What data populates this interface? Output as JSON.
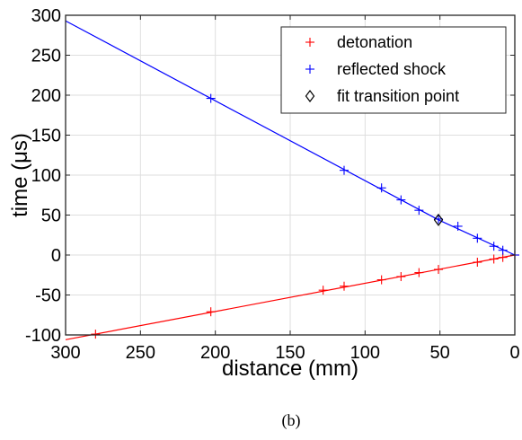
{
  "chart_data": {
    "type": "scatter",
    "xlabel": "distance (mm)",
    "ylabel": "time (μs)",
    "xlim": [
      300,
      0
    ],
    "ylim": [
      -100,
      300
    ],
    "x_reversed": true,
    "xticks": [
      300,
      250,
      200,
      150,
      100,
      50,
      0
    ],
    "yticks": [
      -100,
      -50,
      0,
      50,
      100,
      150,
      200,
      250,
      300
    ],
    "xtick_labels": [
      "300",
      "250",
      "200",
      "150",
      "100",
      "50",
      "0"
    ],
    "ytick_labels": [
      "-100",
      "-50",
      "0",
      "50",
      "100",
      "150",
      "200",
      "250",
      "300"
    ],
    "grid": true,
    "legend_position": "top-right",
    "caption": "(b)",
    "series": [
      {
        "name": "detonation",
        "color": "#ff0000",
        "marker": "+",
        "points": [
          [
            280,
            -99
          ],
          [
            203,
            -71
          ],
          [
            128,
            -44
          ],
          [
            114,
            -39
          ],
          [
            89,
            -31
          ],
          [
            76,
            -27
          ],
          [
            64,
            -22
          ],
          [
            51,
            -18
          ],
          [
            25,
            -9
          ],
          [
            14,
            -5
          ],
          [
            8,
            -3
          ],
          [
            0,
            0
          ]
        ],
        "fit_line": [
          [
            300,
            -106
          ],
          [
            0,
            0
          ]
        ]
      },
      {
        "name": "reflected shock",
        "color": "#0000ff",
        "marker": "+",
        "points": [
          [
            203,
            196
          ],
          [
            114,
            106
          ],
          [
            89,
            84
          ],
          [
            76,
            69
          ],
          [
            64,
            56
          ],
          [
            51,
            45
          ],
          [
            38,
            36
          ],
          [
            25,
            21
          ],
          [
            14,
            11
          ],
          [
            8,
            6
          ],
          [
            0,
            0
          ]
        ],
        "fit_line": [
          [
            300,
            293
          ],
          [
            51,
            44
          ],
          [
            0,
            0
          ]
        ]
      },
      {
        "name": "fit transition point",
        "color": "#000000",
        "marker": "diamond",
        "points": [
          [
            51,
            44
          ]
        ]
      }
    ]
  }
}
